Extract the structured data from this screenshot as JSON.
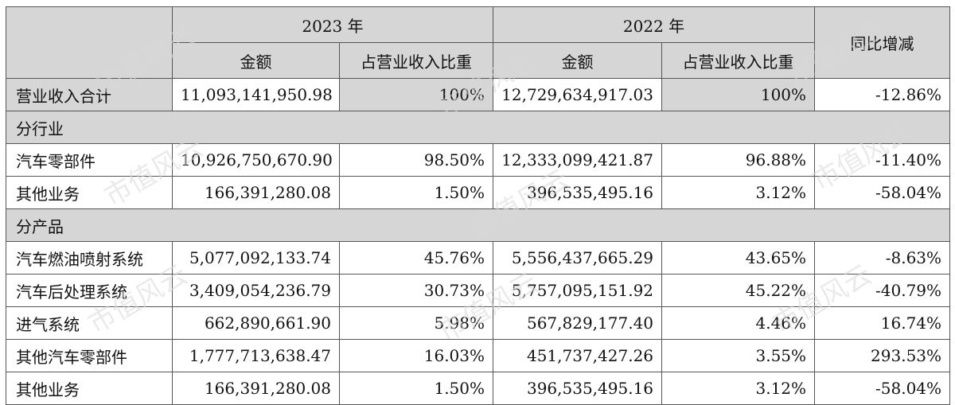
{
  "header": {
    "year_2023": "2023 年",
    "year_2022": "2022 年",
    "yoy": "同比增减",
    "amount": "金额",
    "share": "占营业收入比重"
  },
  "total_row": {
    "label": "营业收入合计",
    "amount_2023": "11,093,141,950.98",
    "share_2023": "100%",
    "amount_2022": "12,729,634,917.03",
    "share_2022": "100%",
    "yoy": "-12.86%"
  },
  "sections": [
    {
      "title": "分行业",
      "rows": [
        {
          "label": "汽车零部件",
          "amount_2023": "10,926,750,670.90",
          "share_2023": "98.50%",
          "amount_2022": "12,333,099,421.87",
          "share_2022": "96.88%",
          "yoy": "-11.40%"
        },
        {
          "label": "其他业务",
          "amount_2023": "166,391,280.08",
          "share_2023": "1.50%",
          "amount_2022": "396,535,495.16",
          "share_2022": "3.12%",
          "yoy": "-58.04%"
        }
      ]
    },
    {
      "title": "分产品",
      "rows": [
        {
          "label": "汽车燃油喷射系统",
          "amount_2023": "5,077,092,133.74",
          "share_2023": "45.76%",
          "amount_2022": "5,556,437,665.29",
          "share_2022": "43.65%",
          "yoy": "-8.63%"
        },
        {
          "label": "汽车后处理系统",
          "amount_2023": "3,409,054,236.79",
          "share_2023": "30.73%",
          "amount_2022": "5,757,095,151.92",
          "share_2022": "45.22%",
          "yoy": "-40.79%"
        },
        {
          "label": "进气系统",
          "amount_2023": "662,890,661.90",
          "share_2023": "5.98%",
          "amount_2022": "567,829,177.40",
          "share_2022": "4.46%",
          "yoy": "16.74%"
        },
        {
          "label": "其他汽车零部件",
          "amount_2023": "1,777,713,638.47",
          "share_2023": "16.03%",
          "amount_2022": "451,737,427.26",
          "share_2022": "3.55%",
          "yoy": "293.53%"
        },
        {
          "label": "其他业务",
          "amount_2023": "166,391,280.08",
          "share_2023": "1.50%",
          "amount_2022": "396,535,495.16",
          "share_2022": "3.12%",
          "yoy": "-58.04%"
        }
      ]
    }
  ],
  "watermark": {
    "text": "市值风云",
    "color": "#d9d9d9"
  }
}
